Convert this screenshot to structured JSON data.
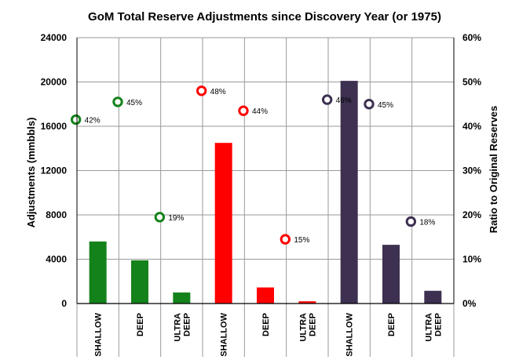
{
  "chart_data": {
    "type": "bar",
    "title": "GoM Total Reserve Adjustments since Discovery Year (or 1975)",
    "ylabel": "Adjustments (mmbbls)",
    "y2label": "Ratio to Original Reserves",
    "ylim": [
      0,
      24000
    ],
    "y2lim": [
      0,
      60
    ],
    "yticks": [
      "0",
      "4000",
      "8000",
      "12000",
      "16000",
      "20000",
      "24000"
    ],
    "y2ticks": [
      "0%",
      "10%",
      "20%",
      "30%",
      "40%",
      "50%",
      "60%"
    ],
    "grid": true,
    "categories": [
      {
        "lines": [
          "SHALLOW"
        ]
      },
      {
        "lines": [
          "DEEP"
        ]
      },
      {
        "lines": [
          "ULTRA",
          "DEEP"
        ]
      },
      {
        "lines": [
          "SHALLOW"
        ]
      },
      {
        "lines": [
          "DEEP"
        ]
      },
      {
        "lines": [
          "ULTRA",
          "DEEP"
        ]
      },
      {
        "lines": [
          "SHALLOW"
        ]
      },
      {
        "lines": [
          "DEEP"
        ]
      },
      {
        "lines": [
          "ULTRA",
          "DEEP"
        ]
      }
    ],
    "series": [
      {
        "type": "bar",
        "values": [
          5600,
          3900,
          1000,
          14500,
          1450,
          200,
          20100,
          5300,
          1150
        ],
        "colors": [
          "#14821a",
          "#14821a",
          "#14821a",
          "#ff0000",
          "#ff0000",
          "#ff0000",
          "#3d3050",
          "#3d3050",
          "#3d3050"
        ]
      },
      {
        "type": "scatter",
        "axis": "secondary",
        "values": [
          42,
          45,
          19,
          48,
          44,
          15,
          46,
          45,
          18
        ],
        "labels": [
          "42%",
          "45%",
          "19%",
          "48%",
          "44%",
          "15%",
          "46%",
          "45%",
          "18%"
        ],
        "point_values": [
          41.5,
          45.5,
          19.5,
          48,
          43.5,
          14.5,
          46,
          45,
          18.5
        ],
        "colors": [
          "#14821a",
          "#14821a",
          "#14821a",
          "#ff0000",
          "#ff0000",
          "#ff0000",
          "#3d3050",
          "#3d3050",
          "#3d3050"
        ]
      }
    ]
  }
}
